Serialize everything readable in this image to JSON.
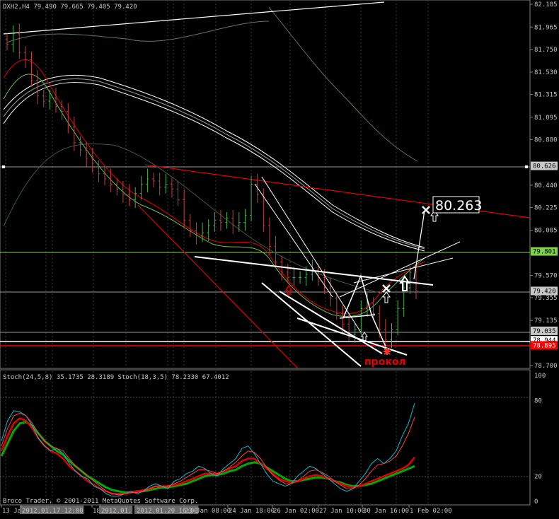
{
  "header": {
    "main": "DXH2,H4  79.490 79.665 79.405 79.420",
    "indicator": "Stoch(24,5,8) 35.1735 28.3189  Stoch(18,3,5) 78.2330 67.4012",
    "copyright": "Broco Trader, © 2001-2011 MetaQuotes Software Corp."
  },
  "price_axis": {
    "ticks": [
      "82.185",
      "81.965",
      "81.750",
      "81.530",
      "81.315",
      "81.095",
      "80.880",
      "80.440",
      "80.225",
      "80.005",
      "79.570",
      "79.355",
      "79.135",
      "78.700"
    ],
    "tags": [
      {
        "label": "80.626",
        "color": "#c8c8c8",
        "text": "#000000"
      },
      {
        "label": "79.801",
        "color": "#7fd34a",
        "text": "#000000"
      },
      {
        "label": "79.420",
        "color": "#c8c8c8",
        "text": "#000000"
      },
      {
        "label": "79.035",
        "color": "#c8c8c8",
        "text": "#000000"
      },
      {
        "label": "78.944",
        "color": "#ffffff",
        "text": "#000000"
      },
      {
        "label": "78.895",
        "color": "#ff0000",
        "text": "#ffffff"
      }
    ]
  },
  "stoch_axis": {
    "ticks": [
      "100",
      "80",
      "20",
      "0"
    ]
  },
  "time_axis": {
    "labels": [
      "13 Jan 2012",
      "2012.01.17 12:00",
      "18",
      "2012.01.",
      "2012.01.20 16:00",
      "23 Jan 08:00",
      "24 Jan 18:00",
      "26 Jan 02:00",
      "27 Jan 10:00",
      "30 Jan 16:00",
      "1 Feb 02:00"
    ],
    "highlighted": [
      "2012.01.17 12:00",
      "2012.01.",
      "2012.01.20 16:00"
    ]
  },
  "annotations": {
    "target_label": "80.263",
    "pierce_label": "прокол"
  },
  "colors": {
    "bg": "#000000",
    "grid": "#3a3a3a",
    "candle": "#4caf50",
    "red_line": "#e00000",
    "white_line": "#ffffff",
    "stoch_main": "#e00000",
    "stoch_signal": "#00cc00",
    "stoch_fast": "#00bcd4",
    "stoch_fast2": "#ff4040"
  },
  "chart_data": [
    {
      "type": "candlestick",
      "symbol": "DXH2",
      "timeframe": "H4",
      "last_bar": {
        "open": 79.49,
        "high": 79.665,
        "low": 79.405,
        "close": 79.42
      },
      "ylim": [
        78.7,
        82.185
      ],
      "closes": [
        81.8,
        81.9,
        81.72,
        81.65,
        81.45,
        81.3,
        81.25,
        81.28,
        81.2,
        81.15,
        81.0,
        80.85,
        80.78,
        80.7,
        80.62,
        80.55,
        80.5,
        80.45,
        80.4,
        80.35,
        80.3,
        80.36,
        80.45,
        80.5,
        80.48,
        80.42,
        80.45,
        80.4,
        80.3,
        80.1,
        80.0,
        79.95,
        79.98,
        80.05,
        80.1,
        80.08,
        80.12,
        80.05,
        80.08,
        80.15,
        80.45,
        80.35,
        80.05,
        79.85,
        79.7,
        79.6,
        79.55,
        79.55,
        79.55,
        79.58,
        79.62,
        79.55,
        79.45,
        79.35,
        79.2,
        79.1,
        79.0,
        79.05,
        79.25,
        79.3,
        79.2,
        79.05,
        78.95,
        79.05,
        79.25,
        79.45,
        79.6,
        79.42
      ],
      "levels": {
        "80.626": 80.626,
        "79.801": 79.801,
        "79.420": 79.42,
        "79.035": 79.035,
        "78.944": 78.944,
        "78.895": 78.895
      },
      "target": 80.263
    },
    {
      "type": "line",
      "name": "Stoch(24,5,8) / Stoch(18,3,5)",
      "ylim": [
        0,
        100
      ],
      "levels": [
        80,
        20
      ],
      "series": [
        {
          "name": "Stoch(18,3,5) main",
          "values": [
            48,
            64,
            72,
            71,
            68,
            60,
            50,
            44,
            40,
            42,
            38,
            30,
            24,
            20,
            18,
            12,
            10,
            6,
            4,
            4,
            6,
            8,
            6,
            8,
            12,
            14,
            12,
            10,
            16,
            18,
            22,
            24,
            28,
            26,
            22,
            20,
            26,
            30,
            34,
            42,
            44,
            38,
            30,
            22,
            16,
            14,
            12,
            14,
            20,
            24,
            28,
            26,
            22,
            18,
            14,
            10,
            8,
            10,
            16,
            22,
            30,
            34,
            30,
            34,
            40,
            52,
            62,
            78
          ]
        },
        {
          "name": "Stoch(18,3,5) signal",
          "values": [
            44,
            58,
            68,
            70,
            68,
            62,
            54,
            48,
            44,
            42,
            40,
            34,
            28,
            24,
            20,
            16,
            12,
            8,
            6,
            5,
            6,
            7,
            7,
            8,
            10,
            12,
            12,
            12,
            14,
            16,
            19,
            22,
            25,
            25,
            24,
            22,
            24,
            27,
            31,
            36,
            40,
            39,
            34,
            27,
            21,
            17,
            14,
            14,
            16,
            20,
            24,
            25,
            23,
            20,
            16,
            13,
            10,
            10,
            13,
            18,
            24,
            29,
            30,
            32,
            36,
            44,
            54,
            67
          ]
        },
        {
          "name": "Stoch(24,5,8) main",
          "values": [
            40,
            52,
            62,
            66,
            64,
            58,
            50,
            44,
            40,
            38,
            34,
            28,
            24,
            20,
            16,
            13,
            10,
            8,
            6,
            6,
            6,
            7,
            8,
            9,
            10,
            12,
            12,
            12,
            13,
            14,
            16,
            18,
            20,
            22,
            22,
            22,
            24,
            26,
            28,
            32,
            34,
            34,
            30,
            26,
            22,
            18,
            16,
            15,
            16,
            18,
            20,
            21,
            20,
            18,
            16,
            14,
            12,
            11,
            12,
            14,
            16,
            18,
            20,
            22,
            24,
            26,
            29,
            35
          ]
        },
        {
          "name": "Stoch(24,5,8) signal",
          "values": [
            36,
            46,
            56,
            62,
            63,
            60,
            54,
            48,
            44,
            40,
            37,
            32,
            28,
            24,
            20,
            17,
            14,
            11,
            9,
            8,
            7,
            7,
            8,
            8,
            9,
            10,
            11,
            11,
            12,
            13,
            14,
            16,
            18,
            20,
            21,
            21,
            22,
            24,
            25,
            28,
            30,
            31,
            30,
            27,
            24,
            21,
            18,
            16,
            16,
            17,
            18,
            19,
            19,
            18,
            16,
            15,
            13,
            12,
            12,
            13,
            14,
            16,
            18,
            20,
            22,
            24,
            26,
            28
          ]
        }
      ]
    }
  ]
}
